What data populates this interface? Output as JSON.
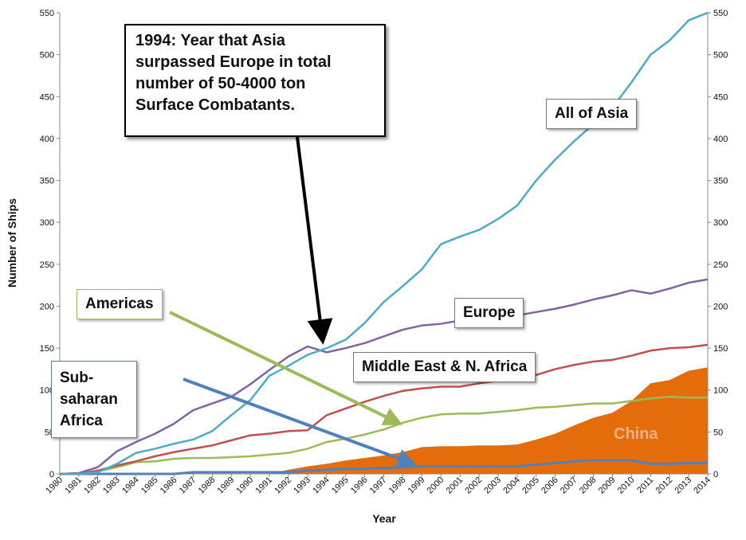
{
  "chart_data": {
    "type": "line",
    "title": "",
    "xlabel": "Year",
    "ylabel": "Number of Ships",
    "ylim": [
      0,
      550
    ],
    "y_ticks": [
      0,
      50,
      100,
      150,
      200,
      250,
      300,
      350,
      400,
      450,
      500,
      550
    ],
    "secondary_y_axis": true,
    "grid": false,
    "x": [
      "1980",
      "1981",
      "1982",
      "1983",
      "1984",
      "1985",
      "1986",
      "1987",
      "1988",
      "1989",
      "1990",
      "1991",
      "1992",
      "1993",
      "1994",
      "1995",
      "1996",
      "1997",
      "1998",
      "1999",
      "2000",
      "2001",
      "2002",
      "2003",
      "2004",
      "2005",
      "2006",
      "2007",
      "2008",
      "2009",
      "2010",
      "2011",
      "2012",
      "2013",
      "2014"
    ],
    "series": [
      {
        "name": "All of Asia",
        "color": "#4bacc6",
        "values": [
          0,
          0,
          2,
          12,
          25,
          30,
          36,
          41,
          51,
          70,
          88,
          117,
          129,
          142,
          150,
          160,
          180,
          205,
          224,
          244,
          274,
          283,
          291,
          304,
          320,
          350,
          375,
          397,
          417,
          437,
          467,
          500,
          517,
          541,
          550
        ]
      },
      {
        "name": "Europe",
        "color": "#8064a2",
        "values": [
          0,
          1,
          8,
          27,
          38,
          48,
          60,
          76,
          84,
          92,
          107,
          124,
          140,
          152,
          145,
          150,
          156,
          164,
          172,
          177,
          179,
          183,
          184,
          187,
          189,
          193,
          197,
          202,
          208,
          213,
          219,
          215,
          221,
          228,
          232
        ]
      },
      {
        "name": "Middle East & N. Africa",
        "color": "#c0504d",
        "values": [
          0,
          0,
          4,
          10,
          15,
          21,
          26,
          30,
          34,
          40,
          46,
          48,
          51,
          52,
          70,
          78,
          86,
          93,
          99,
          102,
          104,
          104,
          108,
          111,
          114,
          118,
          125,
          130,
          134,
          136,
          141,
          147,
          150,
          151,
          154
        ]
      },
      {
        "name": "Americas",
        "color": "#9bbb59",
        "values": [
          0,
          0,
          3,
          8,
          14,
          15,
          18,
          19,
          19,
          20,
          21,
          23,
          25,
          30,
          38,
          42,
          47,
          53,
          61,
          67,
          71,
          72,
          72,
          74,
          76,
          79,
          80,
          82,
          84,
          84,
          87,
          90,
          92,
          91,
          91
        ]
      },
      {
        "name": "Sub-saharan Africa",
        "color": "#4f81bd",
        "values": [
          0,
          0,
          0,
          0,
          0,
          0,
          0,
          2,
          2,
          2,
          2,
          2,
          2,
          4,
          5,
          6,
          6,
          7,
          8,
          9,
          9,
          9,
          9,
          9,
          9,
          11,
          13,
          15,
          16,
          16,
          16,
          12,
          12,
          13,
          13
        ]
      },
      {
        "name": "China",
        "color": "#e46c0a",
        "kind": "area",
        "values": [
          0,
          0,
          0,
          0,
          0,
          0,
          0,
          0,
          0,
          0,
          0,
          0,
          5,
          9,
          12,
          16,
          19,
          22,
          26,
          32,
          33,
          33,
          34,
          34,
          35,
          41,
          48,
          58,
          67,
          73,
          87,
          108,
          112,
          123,
          127
        ]
      }
    ],
    "annotations": [
      {
        "text": "1994: Year that Asia surpassed Europe in total number of 50-4000 ton Surface Combatants.",
        "lines": [
          "1994: Year that Asia",
          "surpassed Europe in total",
          "number of 50-4000 ton",
          "Surface Combatants."
        ]
      }
    ],
    "series_labels": {
      "asia": "All of Asia",
      "europe": "Europe",
      "mena": "Middle East & N. Africa",
      "americas": "Americas",
      "ssa_lines": [
        "Sub-saharan",
        "Africa"
      ],
      "china": "China"
    },
    "colors": {
      "arrow_black": "#000000",
      "arrow_americas": "#9bbb59",
      "arrow_ssa": "#4f81bd",
      "china_text": "#f4b183"
    }
  }
}
